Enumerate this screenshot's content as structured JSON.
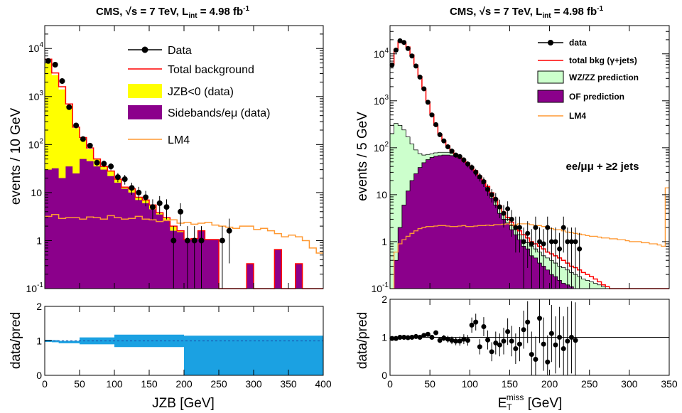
{
  "left_title": {
    "main": "CMS, √s = 7 TeV, L",
    "sub": "int",
    "rest": " = 4.98 fb",
    "sup": "-1"
  },
  "right_title": {
    "main": "CMS, √s = 7 TeV,  L",
    "sub": "int",
    "rest": " = 4.98 fb",
    "sup": "-1"
  },
  "left_ylabel": "events / 10 GeV",
  "right_ylabel": "events / 5 GeV",
  "ratio_ylabel": "data/pred",
  "left_xlabel": "JZB [GeV]",
  "right_xlabel": {
    "main": "E",
    "sub": "T",
    "sup": "miss",
    "rest": " [GeV]"
  },
  "right_annotation": "ee/μμ + ≥2 jets",
  "colors": {
    "yellow": "#ffff00",
    "purple": "#8b008b",
    "green": "#ccffcc",
    "red": "#ff0000",
    "orange": "#ff9933",
    "blue": "#1ba1e2",
    "black": "#000000"
  },
  "chart_data": [
    {
      "type": "bar",
      "panel": "left-main",
      "xlim": [
        0,
        400
      ],
      "ylim": [
        0.1,
        30000
      ],
      "yscale": "log",
      "x_ticks": [
        "0",
        "50",
        "100",
        "150",
        "200",
        "250",
        "300",
        "350",
        "400"
      ],
      "y_ticks": [
        {
          "v": 0.1,
          "base": "10",
          "exp": "-1"
        },
        {
          "v": 1,
          "label": "1"
        },
        {
          "v": 10,
          "label": "10"
        },
        {
          "v": 100,
          "base": "10",
          "exp": "2"
        },
        {
          "v": 1000,
          "base": "10",
          "exp": "3"
        },
        {
          "v": 10000,
          "base": "10",
          "exp": "4"
        }
      ],
      "bin_edges": [
        0,
        10,
        20,
        30,
        40,
        50,
        60,
        70,
        80,
        90,
        100,
        110,
        120,
        130,
        140,
        150,
        160,
        170,
        180,
        190,
        200,
        210,
        220,
        230,
        240,
        250,
        260,
        270,
        280,
        290,
        300,
        310,
        320,
        330,
        340,
        350,
        360,
        370,
        380,
        390,
        400
      ],
      "sidebands": [
        30,
        32,
        20,
        35,
        25,
        50,
        45,
        35,
        30,
        22,
        16,
        12,
        10,
        7,
        6,
        4.5,
        3.5,
        2.7,
        1.6,
        1.5,
        1.05,
        1.1,
        1.6,
        1.05,
        1.05,
        0.1,
        0.1,
        0.1,
        0.1,
        0.33,
        0.1,
        0.1,
        0.1,
        0.65,
        0.1,
        0.1,
        0.33,
        0.1,
        0.1,
        0.1
      ],
      "jzb_neg": [
        5000,
        2800,
        1400,
        650,
        220,
        130,
        80,
        50,
        35,
        28,
        19,
        13,
        12,
        8,
        7,
        5.5,
        3.8,
        3,
        2,
        1.6,
        1.05,
        1.1,
        1.6,
        1.05,
        1.05,
        0.1,
        0.1,
        0.1,
        0.1,
        0.33,
        0.1,
        0.1,
        0.1,
        0.65,
        0.1,
        0.1,
        0.33,
        0.1,
        0.1,
        0.1
      ],
      "total_bkg": [
        6000,
        3100,
        1600,
        700,
        230,
        140,
        85,
        50,
        35,
        28,
        19,
        13,
        12,
        8,
        7,
        5.5,
        3.8,
        3,
        2,
        1.6,
        1.05,
        1.1,
        1.6,
        1.05,
        1.05,
        0.1,
        0.1,
        0.1,
        0.1,
        0.33,
        0.1,
        0.1,
        0.1,
        0.65,
        0.1,
        0.1,
        0.33,
        0.1,
        0.1,
        0.1
      ],
      "lm4": [
        3.2,
        3.5,
        2.9,
        3,
        3,
        2.8,
        3.1,
        3,
        2.8,
        3.3,
        3,
        2.8,
        2.9,
        3.2,
        2.8,
        2.7,
        2.5,
        2.6,
        2.7,
        2.3,
        2.4,
        2.2,
        2.3,
        2.4,
        2.1,
        2,
        1.9,
        1.8,
        2,
        2,
        1.7,
        1.8,
        1.6,
        1.4,
        1.2,
        1.3,
        1.2,
        1.0,
        0.7,
        0.55
      ],
      "data_x": [
        5,
        15,
        25,
        35,
        45,
        55,
        65,
        75,
        85,
        95,
        105,
        115,
        125,
        135,
        145,
        155,
        165,
        175,
        185,
        195,
        205,
        215,
        225,
        255,
        265
      ],
      "data_y": [
        5500,
        4600,
        2100,
        600,
        250,
        130,
        95,
        42,
        40,
        35,
        21,
        19,
        12.5,
        10,
        8,
        5,
        6,
        5,
        1,
        4,
        1,
        1,
        1,
        1,
        1.6
      ],
      "legend": [
        "Data",
        "Total background",
        "JZB<0 (data)",
        "Sidebands/eμ (data)",
        "LM4"
      ]
    },
    {
      "type": "line",
      "panel": "left-ratio",
      "xlim": [
        0,
        400
      ],
      "ylim": [
        0,
        2
      ],
      "y_ticks": [
        "0",
        "1",
        "2"
      ],
      "x_ticks": [
        "0",
        "50",
        "100",
        "150",
        "200",
        "250",
        "300",
        "350",
        "400"
      ],
      "xlabel": "JZB [GeV]",
      "ylabel": "data/pred",
      "ratio_line": 1,
      "bands": [
        {
          "x0": 0,
          "x1": 10,
          "lo": 0.97,
          "hi": 1.03
        },
        {
          "x0": 10,
          "x1": 20,
          "lo": 0.96,
          "hi": 1.02
        },
        {
          "x0": 20,
          "x1": 50,
          "lo": 0.93,
          "hi": 1.0
        },
        {
          "x0": 50,
          "x1": 100,
          "lo": 0.9,
          "hi": 1.1
        },
        {
          "x0": 100,
          "x1": 200,
          "lo": 0.82,
          "hi": 1.18
        },
        {
          "x0": 200,
          "x1": 400,
          "lo": 0.0,
          "hi": 1.15
        }
      ]
    },
    {
      "type": "bar",
      "panel": "right-main",
      "xlim": [
        0,
        350
      ],
      "ylim": [
        0.1,
        40000
      ],
      "yscale": "log",
      "x_ticks": [
        "0",
        "50",
        "100",
        "150",
        "200",
        "250",
        "300",
        "350"
      ],
      "y_ticks": [
        {
          "v": 0.1,
          "base": "10",
          "exp": "-1"
        },
        {
          "v": 1,
          "label": "1"
        },
        {
          "v": 10,
          "label": "10"
        },
        {
          "v": 100,
          "base": "10",
          "exp": "2"
        },
        {
          "v": 1000,
          "base": "10",
          "exp": "3"
        },
        {
          "v": 10000,
          "base": "10",
          "exp": "4"
        }
      ],
      "bin_width": 5,
      "of": [
        0.1,
        0.4,
        2,
        6,
        12,
        20,
        28,
        38,
        48,
        56,
        62,
        66,
        68,
        70,
        70,
        68,
        65,
        60,
        52,
        45,
        38,
        30,
        22,
        17,
        12,
        8.5,
        6,
        4,
        3,
        2.5,
        1.8,
        1.4,
        1.1,
        0.8,
        0.7,
        0.5,
        0.45,
        0.35,
        0.3,
        0.25,
        0.2,
        0.18,
        0.15,
        0.13,
        0.12,
        0.11,
        0.1,
        0.1,
        0.1,
        0.1,
        0.1,
        0.1,
        0.1,
        0.1,
        0.1,
        0.1,
        0.1,
        0.1,
        0.1,
        0.1,
        0.1,
        0.1,
        0.1,
        0.1,
        0.1,
        0.1,
        0.1,
        0.1,
        0.1,
        0.1
      ],
      "wzzz": [
        200,
        330,
        300,
        240,
        170,
        120,
        90,
        75,
        70,
        72,
        74,
        78,
        80,
        80,
        80,
        76,
        70,
        64,
        56,
        48,
        40,
        33,
        25,
        19,
        14,
        10,
        7,
        5,
        3.8,
        3,
        2.2,
        1.8,
        1.4,
        1.1,
        0.95,
        0.8,
        0.7,
        0.6,
        0.5,
        0.45,
        0.4,
        0.35,
        0.3,
        0.28,
        0.25,
        0.22,
        0.2,
        0.18,
        0.16,
        0.15,
        0.14,
        0.13,
        0.12,
        0.11,
        0.1,
        0.1,
        0.1,
        0.1,
        0.1,
        0.1,
        0.1,
        0.1,
        0.1,
        0.1,
        0.1,
        0.1,
        0.1,
        0.1,
        0.1,
        0.1
      ],
      "total_bkg": [
        6000,
        12500,
        18000,
        17000,
        14000,
        9500,
        5800,
        3300,
        1800,
        950,
        520,
        300,
        195,
        140,
        110,
        88,
        72,
        62,
        52,
        45,
        38,
        32,
        25,
        20,
        15,
        11,
        8,
        5.8,
        4.3,
        3.3,
        2.6,
        2.1,
        1.7,
        1.4,
        1.2,
        1,
        0.9,
        0.8,
        0.7,
        0.6,
        0.55,
        0.5,
        0.45,
        0.4,
        0.35,
        0.3,
        0.28,
        0.25,
        0.22,
        0.2,
        0.18,
        0.16,
        0.14,
        0.12,
        0.11,
        0.1,
        0.1,
        0.1,
        0.1,
        0.1,
        0.1,
        0.1,
        0.1,
        0.1,
        0.1,
        0.1,
        0.1,
        0.1,
        0.1,
        0.1
      ],
      "lm4": [
        0.1,
        0.6,
        0.9,
        1.1,
        1.3,
        1.5,
        1.7,
        1.9,
        2.0,
        2.1,
        2.1,
        2.15,
        2.2,
        2.2,
        2.15,
        2.1,
        2.1,
        2.15,
        2.2,
        2.1,
        2.1,
        2.15,
        2.2,
        2.2,
        2.25,
        2.2,
        2.3,
        2.3,
        2.35,
        2.4,
        2.3,
        2.3,
        2.4,
        2.4,
        2.4,
        2.3,
        2.2,
        2.2,
        2.1,
        2.0,
        1.9,
        1.8,
        1.8,
        1.7,
        1.6,
        1.55,
        1.5,
        1.45,
        1.4,
        1.35,
        1.3,
        1.3,
        1.25,
        1.2,
        1.2,
        1.15,
        1.15,
        1.1,
        1.1,
        1.05,
        1.0,
        1.0,
        1.0,
        0.95,
        0.95,
        0.9,
        0.9,
        0.85,
        0.8,
        14
      ],
      "data_x": [
        2.5,
        7.5,
        12.5,
        17.5,
        22.5,
        27.5,
        32.5,
        37.5,
        42.5,
        47.5,
        52.5,
        57.5,
        62.5,
        67.5,
        72.5,
        77.5,
        82.5,
        87.5,
        92.5,
        97.5,
        102.5,
        107.5,
        112.5,
        117.5,
        122.5,
        127.5,
        132.5,
        137.5,
        142.5,
        147.5,
        152.5,
        157.5,
        162.5,
        167.5,
        172.5,
        177.5,
        182.5,
        187.5,
        192.5,
        197.5,
        202.5,
        207.5,
        212.5,
        217.5,
        222.5,
        227.5,
        232.5,
        237.5
      ],
      "data_y": [
        5800,
        12000,
        19000,
        17500,
        13000,
        9000,
        5500,
        3200,
        1800,
        930,
        500,
        310,
        190,
        140,
        105,
        85,
        70,
        65,
        55,
        45,
        38,
        30,
        24,
        19,
        13,
        10,
        8,
        5.5,
        4,
        5,
        3,
        2,
        2,
        1,
        1.5,
        0.9,
        2,
        1,
        0.9,
        2,
        1,
        1,
        0.7,
        2,
        1,
        1,
        1,
        0.7
      ],
      "legend": [
        "data",
        "total bkg (γ+jets)",
        "WZ/ZZ prediction",
        "OF prediction",
        "LM4"
      ]
    },
    {
      "type": "scatter",
      "panel": "right-ratio",
      "xlim": [
        0,
        350
      ],
      "ylim": [
        0,
        2
      ],
      "y_ticks": [
        "0",
        "1",
        "2"
      ],
      "x_ticks": [
        "0",
        "50",
        "100",
        "150",
        "200",
        "250",
        "300",
        "350"
      ],
      "ylabel": "data/pred",
      "ratio_line": 1,
      "x": [
        2.5,
        7.5,
        12.5,
        17.5,
        22.5,
        27.5,
        32.5,
        37.5,
        42.5,
        47.5,
        52.5,
        57.5,
        62.5,
        67.5,
        72.5,
        77.5,
        82.5,
        87.5,
        92.5,
        97.5,
        102.5,
        107.5,
        112.5,
        117.5,
        122.5,
        127.5,
        132.5,
        137.5,
        142.5,
        147.5,
        152.5,
        157.5,
        162.5,
        167.5,
        172.5,
        177.5,
        182.5,
        187.5,
        192.5,
        197.5,
        202.5,
        207.5,
        212.5,
        217.5,
        222.5,
        227.5,
        232.5
      ],
      "y": [
        0.97,
        0.97,
        1.0,
        1.0,
        0.99,
        1.0,
        1.02,
        1.0,
        1.05,
        1.08,
        1.0,
        1.12,
        0.92,
        0.98,
        0.95,
        0.92,
        0.9,
        0.9,
        0.95,
        0.92,
        1.32,
        1.4,
        0.75,
        1.28,
        0.93,
        0.62,
        0.85,
        0.8,
        0.9,
        1.15,
        0.9,
        0.7,
        0.82,
        1.2,
        1.4,
        0.55,
        0.42,
        1.5,
        0.82,
        0.35,
        1.1,
        0.8,
        1.0,
        0.7,
        0.9,
        1.0,
        0.92
      ],
      "err": [
        0.02,
        0.02,
        0.02,
        0.02,
        0.02,
        0.02,
        0.02,
        0.03,
        0.03,
        0.04,
        0.05,
        0.06,
        0.07,
        0.08,
        0.09,
        0.1,
        0.11,
        0.12,
        0.13,
        0.14,
        0.2,
        0.22,
        0.2,
        0.25,
        0.25,
        0.25,
        0.3,
        0.3,
        0.35,
        0.35,
        0.4,
        0.4,
        0.45,
        0.5,
        0.55,
        0.6,
        0.6,
        0.65,
        0.7,
        0.7,
        0.75,
        0.75,
        0.8,
        0.85,
        0.9,
        0.95,
        1.0
      ]
    }
  ]
}
